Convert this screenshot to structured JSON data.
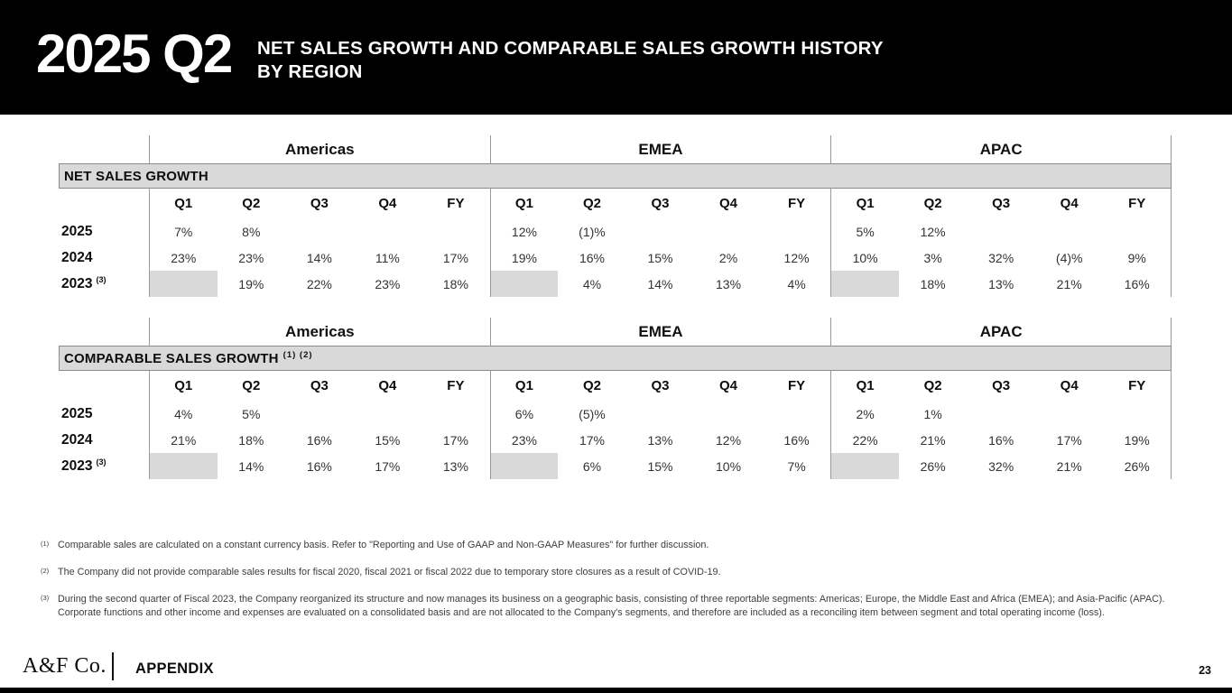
{
  "header": {
    "slide_tag": "2025 Q2",
    "title_line1": "NET SALES GROWTH AND COMPARABLE SALES GROWTH HISTORY",
    "title_line2": "BY REGION"
  },
  "regions": [
    "Americas",
    "EMEA",
    "APAC"
  ],
  "quarter_headers": [
    "Q1",
    "Q2",
    "Q3",
    "Q4",
    "FY"
  ],
  "tables": [
    {
      "section_label": "NET SALES GROWTH",
      "section_suffix": "",
      "rows": [
        {
          "year": "2025",
          "sup": "",
          "cells": [
            "7%",
            "8%",
            "",
            "",
            "",
            "12%",
            "(1)%",
            "",
            "",
            "",
            "5%",
            "12%",
            "",
            "",
            ""
          ],
          "shaded": []
        },
        {
          "year": "2024",
          "sup": "",
          "cells": [
            "23%",
            "23%",
            "14%",
            "11%",
            "17%",
            "19%",
            "16%",
            "15%",
            "2%",
            "12%",
            "10%",
            "3%",
            "32%",
            "(4)%",
            "9%"
          ],
          "shaded": []
        },
        {
          "year": "2023",
          "sup": "(3)",
          "cells": [
            "",
            "19%",
            "22%",
            "23%",
            "18%",
            "",
            "4%",
            "14%",
            "13%",
            "4%",
            "",
            "18%",
            "13%",
            "21%",
            "16%"
          ],
          "shaded": [
            0,
            5,
            10
          ]
        }
      ]
    },
    {
      "section_label": "COMPARABLE SALES GROWTH",
      "section_suffix": "(1) (2)",
      "rows": [
        {
          "year": "2025",
          "sup": "",
          "cells": [
            "4%",
            "5%",
            "",
            "",
            "",
            "6%",
            "(5)%",
            "",
            "",
            "",
            "2%",
            "1%",
            "",
            "",
            ""
          ],
          "shaded": []
        },
        {
          "year": "2024",
          "sup": "",
          "cells": [
            "21%",
            "18%",
            "16%",
            "15%",
            "17%",
            "23%",
            "17%",
            "13%",
            "12%",
            "16%",
            "22%",
            "21%",
            "16%",
            "17%",
            "19%"
          ],
          "shaded": []
        },
        {
          "year": "2023",
          "sup": "(3)",
          "cells": [
            "",
            "14%",
            "16%",
            "17%",
            "13%",
            "",
            "6%",
            "15%",
            "10%",
            "7%",
            "",
            "26%",
            "32%",
            "21%",
            "26%"
          ],
          "shaded": [
            0,
            5,
            10
          ]
        }
      ]
    }
  ],
  "footnotes": [
    {
      "marker": "(1)",
      "text": "Comparable sales are calculated on a constant currency basis. Refer to \"Reporting and Use of GAAP and Non-GAAP Measures\" for further discussion."
    },
    {
      "marker": "(2)",
      "text": "The Company did not provide comparable sales results for fiscal 2020, fiscal 2021 or fiscal 2022 due to temporary store closures as a result of COVID-19."
    },
    {
      "marker": "(3)",
      "text": "During the second quarter of Fiscal 2023, the Company reorganized its structure and now manages its business on a geographic basis, consisting of three reportable segments: Americas; Europe, the Middle East and Africa (EMEA); and Asia-Pacific (APAC). Corporate functions and other income and expenses are evaluated on a consolidated basis and are not allocated to the Company's segments, and therefore are included as a reconciling item between segment and total operating income (loss)."
    }
  ],
  "footer": {
    "brand": "A&F Co.",
    "section": "APPENDIX",
    "page_number": "23"
  },
  "colors": {
    "banner_black": "#000000",
    "shade_gray": "#d9d9d9",
    "grid_line_gray": "#999999"
  }
}
